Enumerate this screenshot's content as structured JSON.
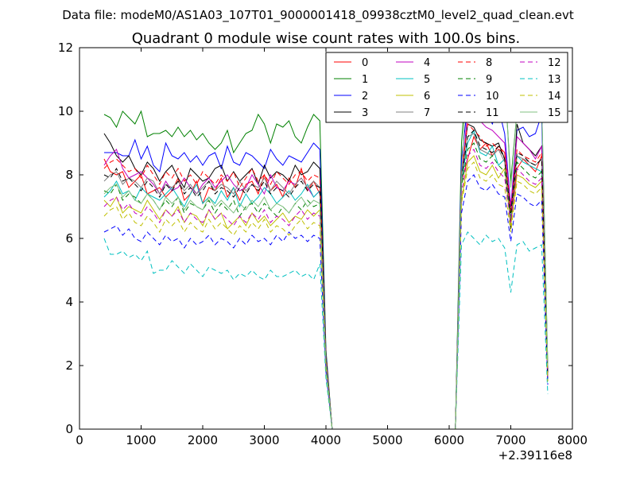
{
  "header_text": "Data file: modeM0/AS1A03_107T01_9000001418_09938cztM0_level2_quad_clean.evt",
  "chart_data": {
    "type": "line",
    "title": "Quadrant 0 module wise count rates with 100.0s bins.",
    "xlabel": "",
    "ylabel": "",
    "x_offset_label": "+2.39116e8",
    "xlim": [
      0,
      8000
    ],
    "ylim": [
      0,
      12
    ],
    "x_ticks": [
      0,
      1000,
      2000,
      3000,
      4000,
      5000,
      6000,
      7000,
      8000
    ],
    "y_ticks": [
      0,
      2,
      4,
      6,
      8,
      10,
      12
    ],
    "grid": false,
    "legend_position": "top-right",
    "legend_columns": 4,
    "x": [
      400,
      500,
      600,
      700,
      800,
      900,
      1000,
      1100,
      1200,
      1300,
      1400,
      1500,
      1600,
      1700,
      1800,
      1900,
      2000,
      2100,
      2200,
      2300,
      2400,
      2500,
      2600,
      2700,
      2800,
      2900,
      3000,
      3100,
      3200,
      3300,
      3400,
      3500,
      3600,
      3700,
      3800,
      3900,
      4000,
      4100,
      4200,
      6100,
      6200,
      6300,
      6400,
      6500,
      6600,
      6700,
      6800,
      6900,
      7000,
      7100,
      7200,
      7300,
      7400,
      7500,
      7600
    ],
    "series": [
      {
        "name": "0",
        "color": "#ff0000",
        "dash": "solid",
        "values": [
          8.5,
          8.1,
          8.0,
          8.1,
          7.6,
          7.8,
          8.0,
          7.4,
          7.5,
          7.6,
          7.3,
          7.5,
          7.9,
          7.2,
          7.4,
          7.8,
          7.1,
          7.6,
          7.5,
          7.9,
          7.3,
          7.6,
          7.2,
          7.7,
          7.8,
          7.4,
          8.0,
          7.5,
          7.7,
          7.3,
          7.9,
          7.6,
          8.2,
          7.5,
          7.8,
          7.4,
          2.3,
          0,
          0,
          0,
          7.8,
          8.5,
          9.2,
          8.8,
          9.0,
          8.6,
          8.9,
          8.7,
          6.5,
          8.2,
          8.5,
          8.3,
          8.1,
          8.6,
          1.6
        ]
      },
      {
        "name": "1",
        "color": "#008000",
        "dash": "solid",
        "values": [
          9.9,
          9.8,
          9.5,
          10.0,
          9.8,
          9.6,
          10.0,
          9.2,
          9.3,
          9.3,
          9.4,
          9.2,
          9.5,
          9.2,
          9.4,
          9.1,
          9.3,
          9.0,
          8.8,
          9.0,
          9.4,
          8.7,
          9.0,
          9.3,
          9.4,
          9.9,
          9.6,
          9.0,
          9.6,
          9.5,
          9.7,
          9.2,
          9.0,
          9.5,
          9.9,
          9.7,
          2.5,
          0,
          0,
          0,
          9.0,
          11.6,
          11.2,
          11.0,
          11.3,
          11.4,
          11.5,
          11.0,
          7.8,
          10.0,
          10.0,
          10.1,
          9.8,
          10.3,
          2.0
        ]
      },
      {
        "name": "2",
        "color": "#0000ff",
        "dash": "solid",
        "values": [
          8.7,
          8.7,
          8.7,
          8.6,
          8.6,
          9.1,
          8.5,
          8.9,
          8.3,
          8.1,
          9.0,
          8.6,
          8.5,
          8.7,
          8.4,
          8.6,
          8.3,
          8.6,
          8.7,
          8.2,
          8.9,
          8.4,
          8.3,
          8.7,
          8.6,
          8.4,
          8.2,
          8.8,
          8.5,
          8.3,
          8.6,
          8.5,
          8.4,
          8.7,
          9.0,
          8.8,
          2.4,
          0,
          0,
          0,
          8.5,
          10.2,
          10.5,
          9.8,
          10.0,
          9.6,
          10.1,
          9.3,
          7.0,
          9.4,
          9.5,
          9.2,
          9.3,
          9.9,
          1.8
        ]
      },
      {
        "name": "3",
        "color": "#000000",
        "dash": "solid",
        "values": [
          9.3,
          9.0,
          8.6,
          8.4,
          8.6,
          8.2,
          8.0,
          8.4,
          8.2,
          7.8,
          8.1,
          8.3,
          7.9,
          7.6,
          8.2,
          8.0,
          7.8,
          7.9,
          8.2,
          8.3,
          7.8,
          8.1,
          7.8,
          8.0,
          8.2,
          7.7,
          8.3,
          7.9,
          8.1,
          8.0,
          7.8,
          8.3,
          8.0,
          8.1,
          8.4,
          8.2,
          2.3,
          0,
          0,
          0,
          8.0,
          9.6,
          9.5,
          9.1,
          9.0,
          8.9,
          9.0,
          8.5,
          6.3,
          9.6,
          9.0,
          8.8,
          8.6,
          8.9,
          1.7
        ]
      },
      {
        "name": "4",
        "color": "#c000c0",
        "dash": "solid",
        "values": [
          8.3,
          8.6,
          8.8,
          8.2,
          7.9,
          8.0,
          8.1,
          7.9,
          7.7,
          7.4,
          7.8,
          7.5,
          7.6,
          7.9,
          7.6,
          7.4,
          7.7,
          7.9,
          7.6,
          7.8,
          8.0,
          7.7,
          7.5,
          7.6,
          8.0,
          7.7,
          7.4,
          8.0,
          7.6,
          7.5,
          7.8,
          7.7,
          7.9,
          7.6,
          7.3,
          7.5,
          2.2,
          0,
          0,
          0,
          7.9,
          10.0,
          10.4,
          9.7,
          9.5,
          9.4,
          9.2,
          9.0,
          7.0,
          9.2,
          9.0,
          8.8,
          8.5,
          8.9,
          1.7
        ]
      },
      {
        "name": "5",
        "color": "#00c0c0",
        "dash": "solid",
        "values": [
          7.3,
          7.5,
          7.8,
          7.4,
          7.5,
          7.2,
          7.6,
          7.4,
          7.3,
          7.2,
          7.4,
          7.6,
          7.3,
          7.0,
          7.4,
          7.7,
          7.1,
          7.3,
          7.1,
          7.5,
          7.2,
          7.6,
          7.0,
          7.4,
          7.1,
          7.3,
          7.6,
          7.4,
          7.1,
          7.3,
          7.5,
          7.2,
          7.4,
          7.7,
          7.3,
          7.5,
          2.1,
          0,
          0,
          0,
          7.8,
          9.0,
          9.4,
          8.7,
          8.6,
          8.9,
          8.3,
          8.5,
          6.6,
          8.6,
          8.4,
          8.3,
          8.2,
          8.1,
          1.6
        ]
      },
      {
        "name": "6",
        "color": "#c0c000",
        "dash": "solid",
        "values": [
          7.2,
          7.0,
          7.3,
          6.8,
          7.0,
          6.9,
          6.8,
          7.2,
          6.9,
          6.6,
          6.9,
          6.7,
          7.0,
          6.5,
          6.8,
          6.7,
          6.4,
          6.9,
          6.6,
          6.8,
          6.3,
          6.5,
          6.7,
          6.4,
          6.8,
          6.5,
          6.7,
          6.4,
          6.6,
          6.8,
          6.5,
          6.7,
          6.6,
          6.9,
          6.7,
          6.9,
          2.0,
          0,
          0,
          0,
          7.2,
          8.4,
          8.6,
          8.1,
          8.0,
          8.3,
          7.9,
          8.2,
          6.4,
          8.0,
          7.9,
          7.7,
          7.6,
          7.8,
          1.5
        ]
      },
      {
        "name": "7",
        "color": "#808080",
        "dash": "solid",
        "values": [
          7.8,
          8.0,
          8.1,
          7.7,
          7.9,
          7.8,
          7.6,
          7.9,
          7.8,
          7.4,
          7.7,
          7.6,
          7.8,
          7.5,
          7.7,
          7.4,
          7.6,
          7.8,
          7.5,
          7.7,
          7.6,
          7.4,
          7.8,
          7.5,
          7.7,
          7.6,
          7.9,
          7.5,
          7.8,
          7.6,
          7.4,
          7.7,
          7.9,
          7.6,
          7.8,
          7.6,
          2.2,
          0,
          0,
          0,
          7.9,
          9.2,
          9.3,
          8.8,
          8.7,
          8.6,
          8.8,
          8.4,
          6.6,
          8.6,
          8.5,
          8.4,
          8.3,
          8.5,
          1.7
        ]
      },
      {
        "name": "8",
        "color": "#ff0000",
        "dash": "dashed",
        "values": [
          8.2,
          8.4,
          8.5,
          8.3,
          8.1,
          8.2,
          7.9,
          8.3,
          8.0,
          7.7,
          8.1,
          7.9,
          8.2,
          7.8,
          8.0,
          7.7,
          8.1,
          7.9,
          7.7,
          8.0,
          7.8,
          8.1,
          7.6,
          7.9,
          8.2,
          7.8,
          8.0,
          7.7,
          8.1,
          7.9,
          7.7,
          8.0,
          8.1,
          7.8,
          8.0,
          7.9,
          2.3,
          0,
          0,
          0,
          8.1,
          9.6,
          9.4,
          9.2,
          8.9,
          9.0,
          8.8,
          8.7,
          6.8,
          8.8,
          8.6,
          8.5,
          8.4,
          8.7,
          1.7
        ]
      },
      {
        "name": "9",
        "color": "#008000",
        "dash": "dashed",
        "values": [
          7.5,
          7.4,
          7.7,
          7.2,
          7.4,
          7.3,
          7.1,
          7.4,
          7.2,
          6.9,
          7.2,
          7.0,
          7.3,
          6.8,
          7.1,
          7.0,
          6.9,
          7.2,
          6.8,
          7.1,
          6.9,
          7.2,
          6.7,
          7.0,
          7.1,
          6.8,
          7.1,
          6.9,
          6.7,
          7.0,
          6.8,
          7.1,
          6.9,
          7.2,
          7.0,
          7.1,
          2.1,
          0,
          0,
          0,
          7.6,
          8.8,
          9.0,
          8.5,
          8.4,
          8.6,
          8.3,
          8.1,
          6.6,
          8.4,
          8.2,
          8.0,
          7.9,
          8.1,
          1.6
        ]
      },
      {
        "name": "10",
        "color": "#0000ff",
        "dash": "dashed",
        "values": [
          6.2,
          6.3,
          6.4,
          6.1,
          6.3,
          6.0,
          5.9,
          6.2,
          6.0,
          5.8,
          6.1,
          5.9,
          6.0,
          5.7,
          6.0,
          5.8,
          5.9,
          6.1,
          5.8,
          6.0,
          5.9,
          5.7,
          6.0,
          5.8,
          6.1,
          5.9,
          6.0,
          5.8,
          6.1,
          5.9,
          6.2,
          6.0,
          6.1,
          5.9,
          6.1,
          6.0,
          1.8,
          0,
          0,
          0,
          6.8,
          7.8,
          8.0,
          7.6,
          7.5,
          7.7,
          7.4,
          7.3,
          5.9,
          7.4,
          7.3,
          7.1,
          7.0,
          7.2,
          1.4
        ]
      },
      {
        "name": "11",
        "color": "#000000",
        "dash": "dashed",
        "values": [
          8.0,
          7.9,
          8.2,
          7.8,
          7.9,
          7.7,
          7.5,
          7.8,
          7.6,
          7.3,
          7.7,
          7.5,
          7.8,
          7.4,
          7.6,
          7.3,
          7.5,
          7.8,
          7.4,
          7.6,
          7.5,
          7.3,
          7.6,
          7.4,
          7.7,
          7.5,
          7.8,
          7.4,
          7.6,
          7.5,
          7.3,
          7.6,
          7.8,
          7.5,
          7.7,
          7.6,
          2.2,
          0,
          0,
          0,
          7.9,
          9.2,
          9.4,
          8.9,
          8.8,
          8.7,
          8.9,
          8.5,
          6.8,
          8.7,
          8.6,
          8.4,
          8.3,
          8.5,
          1.7
        ]
      },
      {
        "name": "12",
        "color": "#c000c0",
        "dash": "dashed",
        "values": [
          7.0,
          7.2,
          7.3,
          6.9,
          7.1,
          6.8,
          6.7,
          7.0,
          6.8,
          6.5,
          6.9,
          6.7,
          6.9,
          6.5,
          6.8,
          6.6,
          6.5,
          6.9,
          6.6,
          6.8,
          6.6,
          6.4,
          6.7,
          6.5,
          6.8,
          6.6,
          6.9,
          6.5,
          6.7,
          6.6,
          6.4,
          6.7,
          6.9,
          6.6,
          6.8,
          6.7,
          2.0,
          0,
          0,
          0,
          7.4,
          8.6,
          8.8,
          8.3,
          8.2,
          8.4,
          8.1,
          7.9,
          6.5,
          8.2,
          8.0,
          7.8,
          7.7,
          7.9,
          1.5
        ]
      },
      {
        "name": "13",
        "color": "#00c0c0",
        "dash": "dashed",
        "values": [
          6.0,
          5.5,
          5.5,
          5.6,
          5.4,
          5.5,
          5.3,
          5.6,
          4.9,
          5.0,
          5.0,
          5.3,
          5.1,
          4.9,
          5.2,
          5.0,
          4.8,
          5.1,
          5.0,
          4.9,
          5.0,
          4.7,
          4.9,
          4.8,
          5.0,
          4.8,
          4.7,
          5.0,
          4.8,
          4.8,
          4.9,
          5.0,
          4.8,
          4.9,
          4.7,
          5.2,
          1.6,
          0,
          0,
          0,
          5.8,
          6.2,
          6.0,
          5.8,
          6.1,
          5.9,
          6.0,
          5.7,
          4.3,
          5.8,
          5.9,
          5.6,
          5.7,
          5.8,
          1.1
        ]
      },
      {
        "name": "14",
        "color": "#c0c000",
        "dash": "dashed",
        "values": [
          6.7,
          6.9,
          7.0,
          6.6,
          6.8,
          6.5,
          6.4,
          6.7,
          6.5,
          6.2,
          6.6,
          6.4,
          6.6,
          6.2,
          6.5,
          6.3,
          6.2,
          6.6,
          6.3,
          6.5,
          6.3,
          6.1,
          6.4,
          6.2,
          6.5,
          6.3,
          6.6,
          6.2,
          6.4,
          6.3,
          6.1,
          6.4,
          6.6,
          6.3,
          6.5,
          6.4,
          1.9,
          0,
          0,
          0,
          7.1,
          8.2,
          8.4,
          7.9,
          7.8,
          8.0,
          7.7,
          7.6,
          6.2,
          7.8,
          7.7,
          7.5,
          7.4,
          7.6,
          1.5
        ]
      },
      {
        "name": "15",
        "color": "#80c080",
        "dash": "solid",
        "values": [
          7.4,
          7.6,
          7.7,
          7.3,
          7.5,
          7.2,
          7.1,
          7.4,
          7.2,
          6.9,
          7.3,
          7.1,
          7.3,
          6.9,
          7.2,
          7.0,
          6.9,
          7.3,
          7.0,
          7.2,
          7.0,
          6.8,
          7.1,
          6.9,
          7.2,
          7.0,
          7.3,
          6.9,
          7.1,
          7.0,
          6.8,
          7.1,
          7.3,
          7.0,
          7.2,
          7.1,
          2.1,
          0,
          0,
          0,
          7.9,
          11.7,
          11.2,
          11.0,
          11.3,
          11.5,
          11.6,
          11.1,
          7.6,
          10.0,
          10.0,
          10.1,
          9.9,
          10.3,
          2.0
        ]
      }
    ]
  }
}
